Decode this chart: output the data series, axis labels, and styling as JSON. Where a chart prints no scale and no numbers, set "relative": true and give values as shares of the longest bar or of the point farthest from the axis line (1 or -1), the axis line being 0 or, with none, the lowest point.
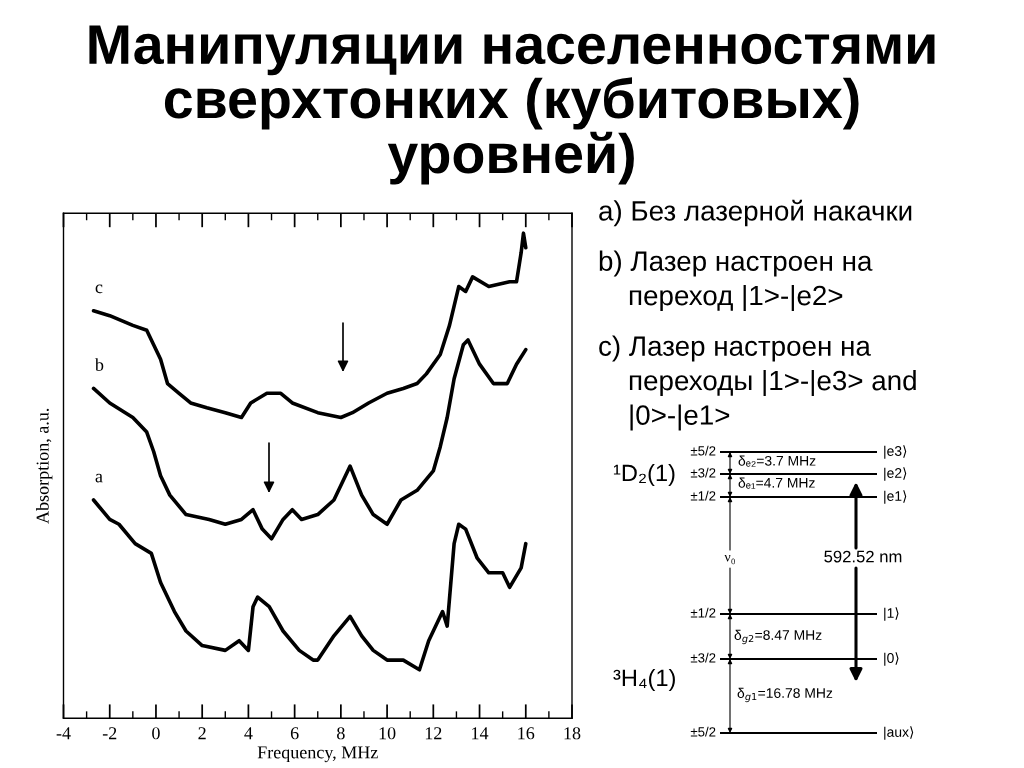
{
  "chart_data": [
    {
      "type": "line",
      "title": "Манипуляции населенностями сверхтонких (кубитовых) уровней)",
      "xlabel": "Frequency, MHz",
      "ylabel": "Absorption, a.u.",
      "relative": true,
      "xlim": [
        -4,
        18
      ],
      "xticks": [
        -4,
        {
          "value": -3,
          "label": null
        },
        -2,
        {
          "value": -1,
          "label": null
        },
        0,
        {
          "value": 1,
          "label": null
        },
        2,
        {
          "value": 3,
          "label": null
        },
        4,
        {
          "value": 5,
          "label": null
        },
        6,
        {
          "value": 7,
          "label": null
        },
        8,
        {
          "value": 9,
          "label": null
        },
        10,
        {
          "value": 11,
          "label": null
        },
        12,
        {
          "value": 13,
          "label": null
        },
        14,
        {
          "value": 15,
          "label": null
        },
        16,
        {
          "value": 17,
          "label": null
        },
        18
      ],
      "series": [
        {
          "name": "a",
          "color": "#000000",
          "x": [
            -2.7,
            -2.0,
            -1.6,
            -0.9,
            -0.2,
            0.2,
            0.8,
            1.3,
            2.0,
            3.0,
            3.6,
            4.0,
            4.2,
            4.4,
            4.9,
            5.5,
            6.2,
            6.8,
            7.0,
            7.7,
            8.4,
            8.9,
            9.4,
            10.0,
            10.7,
            11.4,
            11.8,
            12.4,
            12.6,
            12.9,
            13.1,
            13.4,
            13.9,
            14.4,
            15.0,
            15.3,
            15.8,
            16.0
          ],
          "values": [
            0.45,
            0.41,
            0.4,
            0.36,
            0.34,
            0.28,
            0.22,
            0.18,
            0.15,
            0.14,
            0.16,
            0.14,
            0.23,
            0.25,
            0.23,
            0.18,
            0.14,
            0.12,
            0.12,
            0.17,
            0.21,
            0.17,
            0.14,
            0.12,
            0.12,
            0.1,
            0.16,
            0.22,
            0.19,
            0.36,
            0.4,
            0.39,
            0.33,
            0.3,
            0.3,
            0.27,
            0.31,
            0.36
          ]
        },
        {
          "name": "b",
          "color": "#000000",
          "x": [
            -2.7,
            -2.0,
            -1.0,
            -0.4,
            -0.1,
            0.2,
            0.6,
            1.3,
            2.3,
            3.0,
            3.7,
            4.2,
            4.6,
            5.0,
            5.5,
            5.9,
            6.3,
            7.0,
            7.7,
            8.4,
            8.9,
            9.4,
            10.0,
            10.6,
            11.3,
            12.0,
            12.3,
            12.6,
            12.9,
            13.3,
            13.5,
            14.0,
            14.6,
            15.2,
            15.6,
            16.0
          ],
          "values": [
            0.68,
            0.65,
            0.62,
            0.59,
            0.55,
            0.5,
            0.46,
            0.42,
            0.41,
            0.4,
            0.41,
            0.43,
            0.39,
            0.37,
            0.41,
            0.43,
            0.41,
            0.42,
            0.45,
            0.52,
            0.46,
            0.42,
            0.4,
            0.45,
            0.47,
            0.51,
            0.56,
            0.62,
            0.7,
            0.77,
            0.78,
            0.73,
            0.69,
            0.69,
            0.73,
            0.76
          ]
        },
        {
          "name": "c",
          "color": "#000000",
          "x": [
            -2.7,
            -2.0,
            -1.0,
            -0.4,
            -0.1,
            0.2,
            0.5,
            1.0,
            1.5,
            2.2,
            3.0,
            3.7,
            4.1,
            4.8,
            5.4,
            5.9,
            7.0,
            8.0,
            8.5,
            9.2,
            10.0,
            10.7,
            11.3,
            11.7,
            12.3,
            12.7,
            13.1,
            13.4,
            13.7,
            14.4,
            15.3,
            15.6,
            15.8,
            15.9,
            16.0
          ],
          "values": [
            0.84,
            0.83,
            0.81,
            0.8,
            0.77,
            0.74,
            0.69,
            0.67,
            0.65,
            0.64,
            0.63,
            0.62,
            0.65,
            0.67,
            0.67,
            0.65,
            0.63,
            0.62,
            0.63,
            0.65,
            0.67,
            0.68,
            0.69,
            0.71,
            0.75,
            0.81,
            0.89,
            0.88,
            0.91,
            0.89,
            0.9,
            0.9,
            0.96,
            1.0,
            0.97
          ]
        }
      ],
      "annotations": [
        "a) Без лазерной накачки",
        "b) Лазер настроен на\nпереход |1>-|e2>",
        "c) Лазер настроен на\nпереходы |1>-|e3> and\n|0>-|e1>"
      ]
    },
    {
      "type": "other",
      "annotations": [
        "¹D₂(1)",
        "±5/2",
        "±3/2",
        "±1/2",
        "|e3⟩",
        "|e2⟩",
        "|e1⟩",
        "δₑ₂=3.7 MHz",
        "δₑ₁=4.7 MHz",
        "ν₀",
        "592.52 nm",
        "±1/2",
        "±3/2",
        "±5/2",
        "|1⟩",
        "|0⟩",
        "|aux⟩",
        "³H₄(1)",
        "δ$_{g2}$=8.47 MHz",
        "δ$_{g1}$=16.78 MHz"
      ]
    }
  ]
}
